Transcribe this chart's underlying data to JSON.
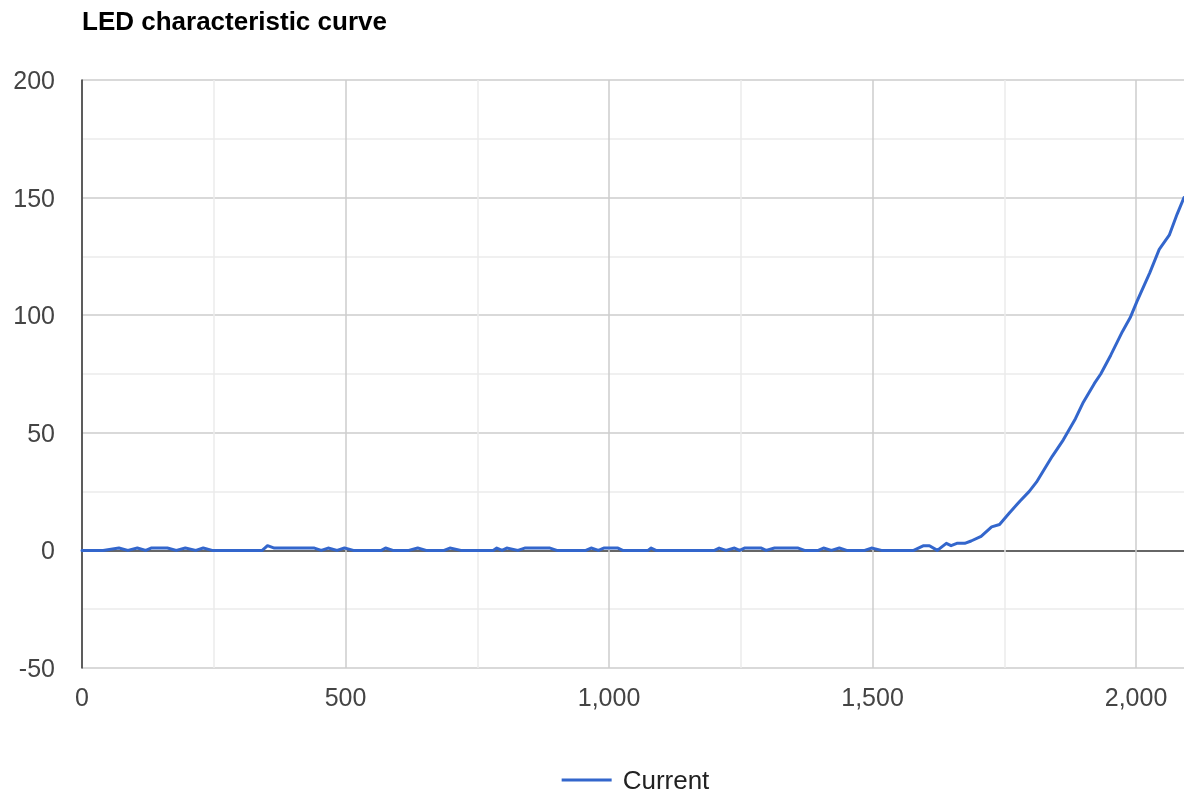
{
  "chart_data": {
    "type": "line",
    "title": "LED characteristic curve",
    "x": [
      0,
      40,
      70,
      87,
      105,
      121,
      131,
      162,
      179,
      196,
      216,
      230,
      247,
      342,
      352,
      365,
      441,
      454,
      467,
      484,
      498,
      515,
      568,
      576,
      590,
      620,
      637,
      653,
      687,
      698,
      719,
      780,
      787,
      797,
      806,
      827,
      840,
      888,
      901,
      956,
      966,
      980,
      990,
      1017,
      1026,
      1074,
      1080,
      1089,
      1200,
      1209,
      1222,
      1238,
      1248,
      1257,
      1289,
      1298,
      1314,
      1359,
      1371,
      1397,
      1407,
      1422,
      1437,
      1451,
      1485,
      1498,
      1517,
      1578,
      1597,
      1608,
      1623,
      1640,
      1649,
      1660,
      1675,
      1687,
      1706,
      1726,
      1741,
      1760,
      1780,
      1797,
      1811,
      1830,
      1841,
      1862,
      1885,
      1900,
      1921,
      1933,
      1952,
      1963,
      1974,
      1989,
      2002,
      2026,
      2044,
      2063,
      2078,
      2091
    ],
    "series": [
      {
        "name": "Current",
        "color": "#3366cc",
        "values": [
          0,
          0,
          1,
          0,
          1,
          0,
          1,
          1,
          0,
          1,
          0,
          1,
          0,
          0,
          2,
          1,
          1,
          0,
          1,
          0,
          1,
          0,
          0,
          1,
          0,
          0,
          1,
          0,
          0,
          1,
          0,
          0,
          1,
          0,
          1,
          0,
          1,
          1,
          0,
          0,
          1,
          0,
          1,
          1,
          0,
          0,
          1,
          0,
          0,
          1,
          0,
          1,
          0,
          1,
          1,
          0,
          1,
          1,
          0,
          0,
          1,
          0,
          1,
          0,
          0,
          1,
          0,
          0,
          2,
          2,
          0,
          3,
          2,
          3,
          3,
          4,
          6,
          10,
          11,
          16,
          21,
          25,
          29,
          36,
          40,
          47,
          56,
          63,
          71,
          75,
          83,
          88,
          93,
          99,
          106,
          118,
          128,
          134,
          143,
          150
        ]
      }
    ],
    "xlim": [
      0,
      2091
    ],
    "ylim": [
      -50,
      200
    ],
    "xticks": [
      0,
      {
        "value": 250,
        "label": null
      },
      500,
      {
        "value": 750,
        "label": null
      },
      {
        "value": 1000,
        "label": "1,000"
      },
      {
        "value": 1250,
        "label": null
      },
      {
        "value": 1500,
        "label": "1,500"
      },
      {
        "value": 1750,
        "label": null
      },
      {
        "value": 2000,
        "label": "2,000"
      }
    ],
    "yticks": [
      -50,
      {
        "value": -25,
        "label": null
      },
      0,
      {
        "value": 25,
        "label": null
      },
      50,
      {
        "value": 75,
        "label": null
      },
      100,
      {
        "value": 125,
        "label": null
      },
      150,
      {
        "value": 175,
        "label": null
      },
      200
    ],
    "grid": true,
    "legend": "bottom",
    "marker": "none",
    "line_style": "solid"
  }
}
